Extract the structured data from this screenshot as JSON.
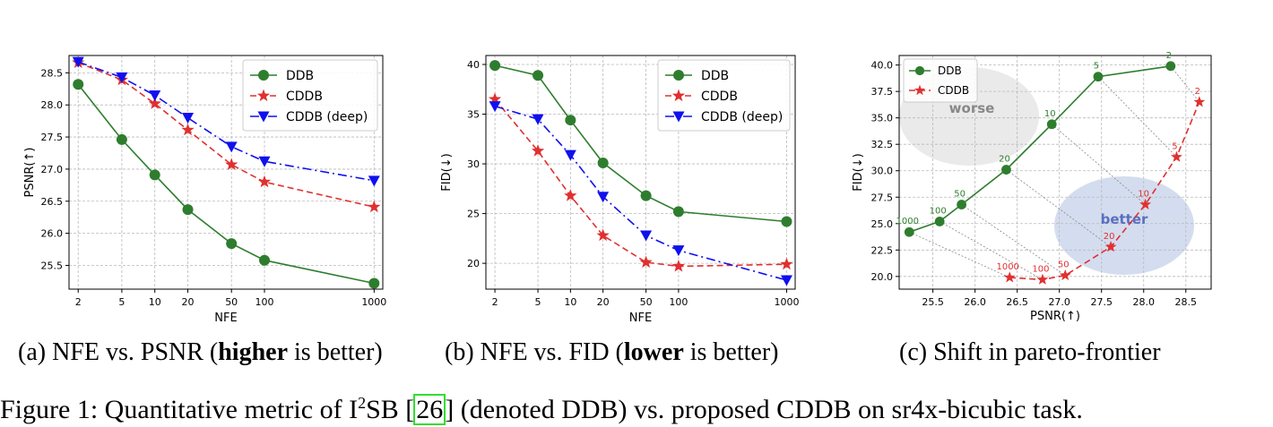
{
  "chart_data": [
    {
      "type": "line",
      "xlabel": "NFE",
      "ylabel": "PSNR(↑)",
      "x_scale": "log",
      "x": [
        2,
        5,
        10,
        20,
        50,
        100,
        1000
      ],
      "x_ticks": [
        "2",
        "5",
        "10",
        "20",
        "50",
        "100",
        "1000"
      ],
      "y_ticks": [
        "25.5",
        "26.0",
        "26.5",
        "27.0",
        "27.5",
        "28.0",
        "28.5"
      ],
      "ylim": [
        25.13,
        28.77
      ],
      "grid": true,
      "legend_position": "top-right",
      "series": [
        {
          "name": "DDB",
          "values": [
            28.32,
            27.46,
            26.91,
            26.37,
            25.84,
            25.58,
            25.22
          ],
          "color": "#2e7d2e",
          "marker": "circle",
          "line": "solid"
        },
        {
          "name": "CDDB",
          "values": [
            28.66,
            28.39,
            28.02,
            27.61,
            27.07,
            26.8,
            26.41
          ],
          "color": "#e03030",
          "marker": "star",
          "line": "dashed"
        },
        {
          "name": "CDDB (deep)",
          "values": [
            28.67,
            28.43,
            28.15,
            27.8,
            27.35,
            27.12,
            26.82
          ],
          "color": "#1010ee",
          "marker": "triangle-down",
          "line": "dashdot"
        }
      ]
    },
    {
      "type": "line",
      "xlabel": "NFE",
      "ylabel": "FID(↓)",
      "x_scale": "log",
      "x": [
        2,
        5,
        10,
        20,
        50,
        100,
        1000
      ],
      "x_ticks": [
        "2",
        "5",
        "10",
        "20",
        "50",
        "100",
        "1000"
      ],
      "y_ticks": [
        "20",
        "25",
        "30",
        "35",
        "40"
      ],
      "ylim": [
        17.4,
        40.9
      ],
      "grid": true,
      "legend_position": "top-right",
      "series": [
        {
          "name": "DDB",
          "values": [
            39.9,
            38.9,
            34.4,
            30.1,
            26.8,
            25.2,
            24.2
          ],
          "color": "#2e7d2e",
          "marker": "circle",
          "line": "solid"
        },
        {
          "name": "CDDB",
          "values": [
            36.5,
            31.3,
            26.8,
            22.8,
            20.1,
            19.7,
            19.9
          ],
          "color": "#e03030",
          "marker": "star",
          "line": "dashed"
        },
        {
          "name": "CDDB (deep)",
          "values": [
            35.8,
            34.5,
            30.9,
            26.7,
            22.8,
            21.3,
            18.3
          ],
          "color": "#1010ee",
          "marker": "triangle-down",
          "line": "dashdot"
        }
      ]
    },
    {
      "type": "line",
      "xlabel": "PSNR(↑)",
      "ylabel": "FID(↓)",
      "x_ticks": [
        "25.5",
        "26.0",
        "26.5",
        "27.0",
        "27.5",
        "28.0",
        "28.5"
      ],
      "y_ticks": [
        "20.0",
        "22.5",
        "25.0",
        "27.5",
        "30.0",
        "32.5",
        "35.0",
        "37.5",
        "40.0"
      ],
      "xlim": [
        25.1,
        28.8
      ],
      "ylim": [
        18.8,
        40.9
      ],
      "grid": true,
      "legend_position": "top-left",
      "series": [
        {
          "name": "DDB",
          "color": "#2e7d2e",
          "marker": "circle",
          "line": "solid",
          "points": [
            {
              "x": 25.22,
              "y": 24.2,
              "label": "1000"
            },
            {
              "x": 25.58,
              "y": 25.2,
              "label": "100"
            },
            {
              "x": 25.84,
              "y": 26.8,
              "label": "50"
            },
            {
              "x": 26.37,
              "y": 30.1,
              "label": "20"
            },
            {
              "x": 26.91,
              "y": 34.4,
              "label": "10"
            },
            {
              "x": 27.46,
              "y": 38.9,
              "label": "5"
            },
            {
              "x": 28.32,
              "y": 39.9,
              "label": "2"
            }
          ]
        },
        {
          "name": "CDDB",
          "color": "#e03030",
          "marker": "star",
          "line": "dashed",
          "points": [
            {
              "x": 26.41,
              "y": 19.9,
              "label": "1000"
            },
            {
              "x": 26.8,
              "y": 19.7,
              "label": "100"
            },
            {
              "x": 27.07,
              "y": 20.1,
              "label": "50"
            },
            {
              "x": 27.61,
              "y": 22.8,
              "label": "20"
            },
            {
              "x": 28.02,
              "y": 26.8,
              "label": "10"
            },
            {
              "x": 28.39,
              "y": 31.3,
              "label": "5"
            },
            {
              "x": 28.66,
              "y": 36.5,
              "label": "2"
            }
          ]
        }
      ],
      "annotations": [
        {
          "text": "worse",
          "color": "#888888"
        },
        {
          "text": "better",
          "color": "#5a6fc0"
        }
      ]
    }
  ],
  "captions": {
    "a": {
      "pre": "(a) NFE vs. PSNR (",
      "bold": "higher",
      "post": " is better)"
    },
    "b": {
      "pre": "(b) NFE vs. FID (",
      "bold": "lower",
      "post": " is better)"
    },
    "c": {
      "text": "(c) Shift in pareto-frontier"
    }
  },
  "figure_caption": {
    "pre": "Figure 1: Quantitative metric of I",
    "sup": "2",
    "mid": "SB [",
    "ref": "26",
    "post": "] (denoted DDB) vs. proposed CDDB on sr4x-bicubic task."
  }
}
